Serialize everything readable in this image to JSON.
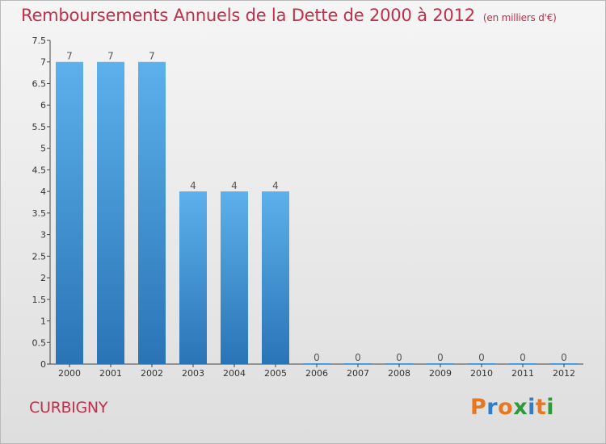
{
  "header": {
    "title": "Remboursements Annuels de la Dette de 2000 à 2012",
    "subtitle": "(en milliers d'€)"
  },
  "footer": {
    "town": "CURBIGNY",
    "logo": [
      "P",
      "r",
      "o",
      "x",
      "i",
      "t",
      "i"
    ],
    "logo_colors": [
      "#e87722",
      "#2f7dc5",
      "#e87722",
      "#2f9a3c",
      "#2f7dc5",
      "#e87722",
      "#2f9a3c"
    ]
  },
  "chart_data": {
    "type": "bar",
    "title": "Remboursements Annuels de la Dette de 2000 à 2012",
    "subtitle": "(en milliers d'€)",
    "categories": [
      "2000",
      "2001",
      "2002",
      "2003",
      "2004",
      "2005",
      "2006",
      "2007",
      "2008",
      "2009",
      "2010",
      "2011",
      "2012"
    ],
    "values": [
      7,
      7,
      7,
      4,
      4,
      4,
      0,
      0,
      0,
      0,
      0,
      0,
      0
    ],
    "data_labels": [
      "7",
      "7",
      "7",
      "4",
      "4",
      "4",
      "0",
      "0",
      "0",
      "0",
      "0",
      "0",
      "0"
    ],
    "y_ticks": [
      "0",
      "0.5",
      "1",
      "1.5",
      "2",
      "2.5",
      "3",
      "3.5",
      "4",
      "4.5",
      "5",
      "5.5",
      "6",
      "6.5",
      "7",
      "7.5"
    ],
    "ylim": [
      0,
      7.5
    ],
    "bar_color": "#3a8fd6",
    "grid": false,
    "legend": "none"
  }
}
